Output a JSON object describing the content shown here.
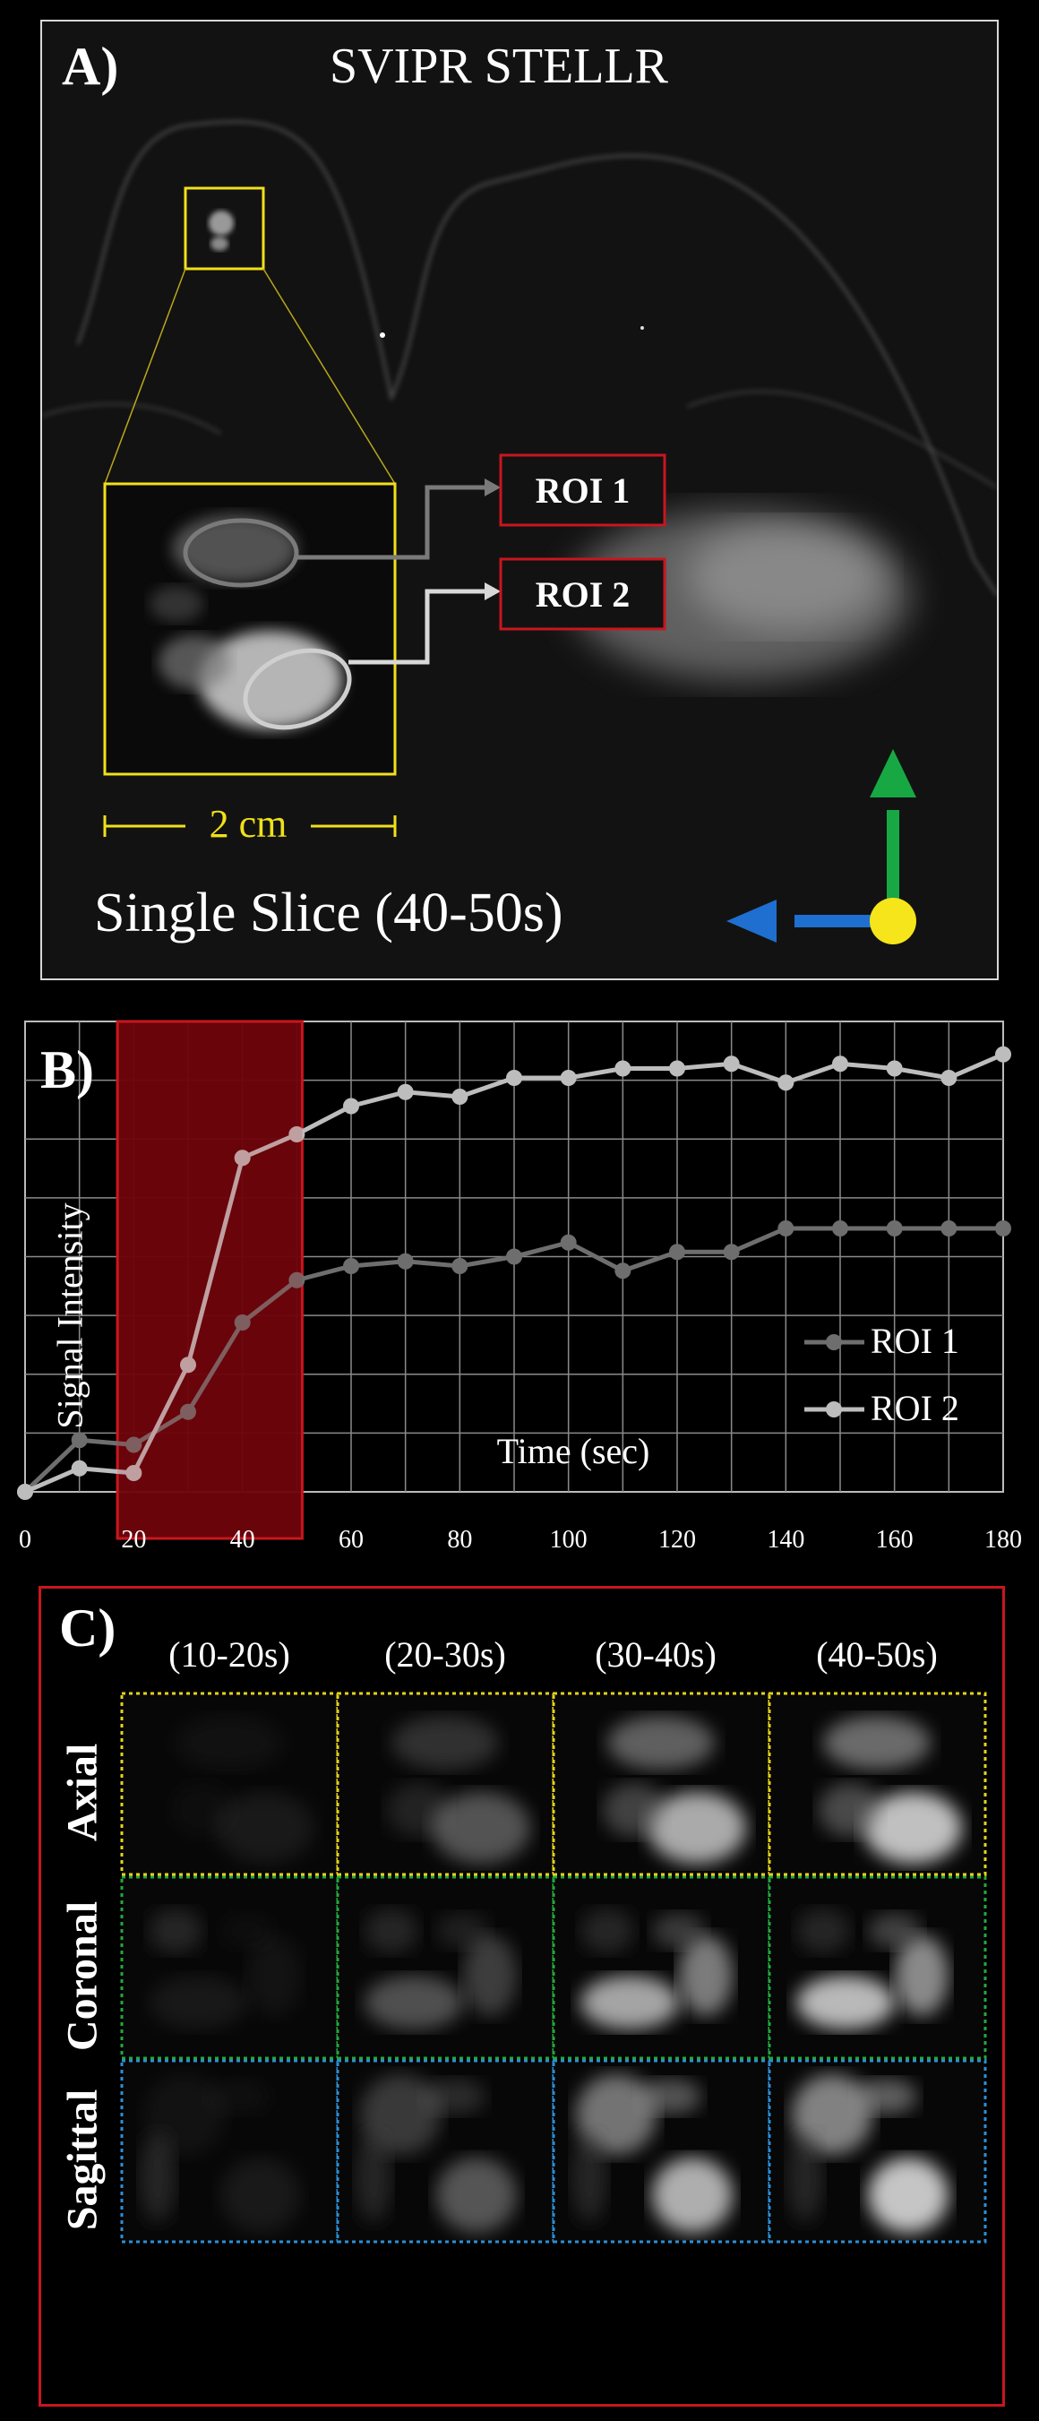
{
  "panel_a": {
    "letter": "A)",
    "title": "SVIPR STELLR",
    "roi1_label": "ROI 1",
    "roi2_label": "ROI 2",
    "scale_label": "2 cm",
    "caption": "Single Slice (40-50s)",
    "colors": {
      "zoom_box": "#f0e01a",
      "roi_box": "#c8161e",
      "arrow_up": "#17a844",
      "arrow_left": "#1e6fcf",
      "origin_dot": "#f6e51a"
    }
  },
  "panel_b": {
    "letter": "B)",
    "highlight_color": "#5a0008"
  },
  "chart_data": {
    "type": "line",
    "title": "",
    "xlabel": "Time (sec)",
    "ylabel": "Signal Intensity",
    "xlim": [
      0,
      180
    ],
    "ylim": [
      0,
      100
    ],
    "x_ticks": [
      "0",
      "20",
      "40",
      "60",
      "80",
      "100",
      "120",
      "140",
      "160",
      "180"
    ],
    "highlight_range": [
      17,
      51
    ],
    "legend_position": "right",
    "x": [
      0,
      10,
      20,
      30,
      40,
      50,
      60,
      70,
      80,
      90,
      100,
      110,
      120,
      130,
      140,
      150,
      160,
      170,
      180
    ],
    "series": [
      {
        "name": "ROI 1",
        "color": "#6e6e6e",
        "values": [
          0,
          11,
          10,
          17,
          36,
          45,
          48,
          49,
          48,
          50,
          53,
          47,
          51,
          51,
          56,
          56,
          56,
          56,
          56
        ]
      },
      {
        "name": "ROI 2",
        "color": "#bdbdbd",
        "values": [
          0,
          5,
          4,
          27,
          71,
          76,
          82,
          85,
          84,
          88,
          88,
          90,
          90,
          91,
          87,
          91,
          90,
          88,
          93
        ]
      }
    ]
  },
  "panel_c": {
    "letter": "C)",
    "columns": [
      "(10-20s)",
      "(20-30s)",
      "(30-40s)",
      "(40-50s)"
    ],
    "rows": [
      {
        "label": "Axial",
        "color": "#e6d21a"
      },
      {
        "label": "Coronal",
        "color": "#23a83c"
      },
      {
        "label": "Sagittal",
        "color": "#2c8fd6"
      }
    ]
  }
}
